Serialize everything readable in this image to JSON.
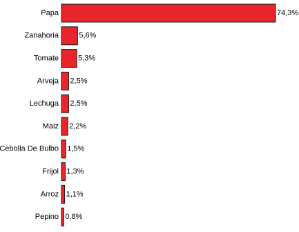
{
  "chart_data": {
    "type": "bar",
    "orientation": "horizontal",
    "categories": [
      "Papa",
      "Zanahoria",
      "Tomate",
      "Arveja",
      "Lechuga",
      "Maiz",
      "Cebolla De Bulbo",
      "Frijol",
      "Arroz",
      "Pepino"
    ],
    "values": [
      74.3,
      5.6,
      5.3,
      2.5,
      2.5,
      2.2,
      1.5,
      1.3,
      1.1,
      0.8
    ],
    "value_labels": [
      "74,3%",
      "5,6%",
      "5,3%",
      "2,5%",
      "2,5%",
      "2,2%",
      "1,5%",
      "1,3%",
      "1,1%",
      "0,8%"
    ],
    "xlim": [
      0,
      74.3
    ],
    "bar_color": "#e8252b",
    "bar_edge_color": "#1a1a1a",
    "grid": false,
    "legend": "none",
    "title": "",
    "xlabel": "",
    "ylabel": ""
  }
}
